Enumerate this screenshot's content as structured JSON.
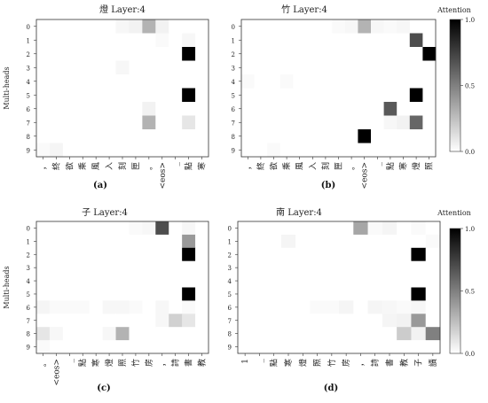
{
  "chart_data": [
    {
      "type": "heatmap",
      "title": "燈 Layer:4",
      "panel_label": "(a)",
      "ylabel": "Multi-heads",
      "y_ticks": [
        "0",
        "1",
        "2",
        "3",
        "4",
        "5",
        "6",
        "7",
        "8",
        "9"
      ],
      "x_ticks": [
        "，",
        "終",
        "欲",
        "乘",
        "風",
        "入",
        "刻",
        "匣",
        "。",
        "<eos>",
        "_",
        "點",
        "寒"
      ],
      "values": [
        [
          0,
          0,
          0,
          0,
          0,
          0,
          0.03,
          0.05,
          0.3,
          0.05,
          0,
          0,
          0
        ],
        [
          0,
          0,
          0,
          0,
          0,
          0,
          0,
          0,
          0,
          0.02,
          0,
          0.03,
          0
        ],
        [
          0,
          0,
          0,
          0,
          0,
          0,
          0,
          0,
          0,
          0,
          0,
          1.0,
          0
        ],
        [
          0,
          0,
          0,
          0,
          0,
          0,
          0.03,
          0,
          0,
          0,
          0,
          0,
          0
        ],
        [
          0,
          0,
          0,
          0,
          0,
          0,
          0,
          0,
          0,
          0,
          0,
          0,
          0
        ],
        [
          0,
          0,
          0,
          0,
          0,
          0,
          0,
          0,
          0,
          0,
          0,
          1.0,
          0
        ],
        [
          0,
          0,
          0,
          0,
          0,
          0,
          0,
          0,
          0.05,
          0,
          0,
          0,
          0
        ],
        [
          0,
          0,
          0,
          0,
          0,
          0,
          0,
          0,
          0.3,
          0,
          0,
          0.1,
          0
        ],
        [
          0,
          0,
          0,
          0,
          0,
          0,
          0,
          0,
          0,
          0,
          0,
          0,
          0
        ],
        [
          0.02,
          0.04,
          0,
          0,
          0,
          0,
          0,
          0,
          0,
          0,
          0,
          0,
          0
        ]
      ]
    },
    {
      "type": "heatmap",
      "title": "竹 Layer:4",
      "panel_label": "(b)",
      "ylabel": "",
      "y_ticks": [
        "0",
        "1",
        "2",
        "3",
        "4",
        "5",
        "6",
        "7",
        "8",
        "9"
      ],
      "x_ticks": [
        "，",
        "終",
        "欲",
        "乘",
        "風",
        "入",
        "刻",
        "匣",
        "。",
        "<eos>",
        "_",
        "點",
        "寒",
        "燈",
        "照"
      ],
      "values": [
        [
          0,
          0,
          0,
          0,
          0,
          0,
          0,
          0.02,
          0.03,
          0.3,
          0.03,
          0.02,
          0.03,
          0,
          0
        ],
        [
          0,
          0,
          0,
          0,
          0,
          0,
          0,
          0,
          0,
          0,
          0,
          0,
          0,
          0.7,
          0
        ],
        [
          0,
          0,
          0,
          0,
          0,
          0,
          0,
          0,
          0,
          0,
          0,
          0,
          0,
          0,
          1.0
        ],
        [
          0,
          0,
          0,
          0,
          0,
          0,
          0,
          0,
          0,
          0,
          0,
          0,
          0,
          0,
          0
        ],
        [
          0.02,
          0,
          0,
          0.02,
          0,
          0,
          0,
          0,
          0,
          0,
          0,
          0,
          0,
          0,
          0
        ],
        [
          0,
          0,
          0,
          0,
          0,
          0,
          0,
          0,
          0,
          0,
          0,
          0,
          0,
          1.0,
          0
        ],
        [
          0,
          0,
          0,
          0,
          0,
          0,
          0,
          0,
          0,
          0,
          0,
          0.65,
          0,
          0,
          0
        ],
        [
          0,
          0,
          0,
          0,
          0,
          0,
          0,
          0,
          0,
          0,
          0,
          0.03,
          0.05,
          0.6,
          0
        ],
        [
          0,
          0,
          0,
          0,
          0,
          0,
          0,
          0,
          0,
          1.0,
          0,
          0,
          0,
          0,
          0
        ],
        [
          0,
          0,
          0.02,
          0,
          0,
          0,
          0,
          0,
          0,
          0,
          0,
          0,
          0,
          0,
          0
        ]
      ]
    },
    {
      "type": "heatmap",
      "title": "子 Layer:4",
      "panel_label": "(c)",
      "ylabel": "Multi-heads",
      "y_ticks": [
        "0",
        "1",
        "2",
        "3",
        "4",
        "5",
        "6",
        "7",
        "8",
        "9"
      ],
      "x_ticks": [
        "。",
        "<eos>",
        "_",
        "點",
        "寒",
        "燈",
        "照",
        "竹",
        "房",
        "，",
        "詩",
        "書",
        "教"
      ],
      "values": [
        [
          0,
          0,
          0,
          0,
          0,
          0,
          0,
          0.02,
          0.03,
          0.7,
          0,
          0.03,
          0
        ],
        [
          0,
          0,
          0,
          0,
          0,
          0,
          0,
          0,
          0,
          0,
          0,
          0.4,
          0
        ],
        [
          0,
          0,
          0,
          0,
          0,
          0,
          0,
          0,
          0,
          0,
          0,
          1.0,
          0
        ],
        [
          0,
          0,
          0,
          0,
          0,
          0,
          0,
          0,
          0,
          0,
          0,
          0,
          0
        ],
        [
          0,
          0,
          0,
          0,
          0,
          0,
          0,
          0,
          0,
          0,
          0,
          0,
          0
        ],
        [
          0,
          0,
          0,
          0,
          0,
          0,
          0,
          0,
          0,
          0,
          0,
          1.0,
          0
        ],
        [
          0.04,
          0.02,
          0.02,
          0.02,
          0,
          0.03,
          0.03,
          0.02,
          0,
          0.03,
          0,
          0.02,
          0
        ],
        [
          0,
          0,
          0,
          0,
          0,
          0,
          0,
          0,
          0,
          0.03,
          0.18,
          0.1,
          0
        ],
        [
          0.1,
          0.03,
          0,
          0,
          0,
          0.03,
          0.3,
          0,
          0,
          0,
          0,
          0,
          0
        ],
        [
          0.02,
          0,
          0,
          0,
          0,
          0,
          0,
          0,
          0,
          0,
          0,
          0,
          0
        ]
      ]
    },
    {
      "type": "heatmap",
      "title": "南 Layer:4",
      "panel_label": "(d)",
      "ylabel": "",
      "y_ticks": [
        "0",
        "1",
        "2",
        "3",
        "4",
        "5",
        "6",
        "7",
        "8",
        "9"
      ],
      "x_ticks": [
        "1",
        "_",
        "點",
        "寒",
        "燈",
        "照",
        "竹",
        "房",
        "，",
        "詩",
        "書",
        "教",
        "子",
        "讀"
      ],
      "values": [
        [
          0,
          0,
          0,
          0,
          0,
          0,
          0,
          0,
          0.35,
          0.02,
          0.04,
          0,
          0.02,
          0
        ],
        [
          0,
          0,
          0,
          0.04,
          0,
          0,
          0,
          0,
          0,
          0,
          0,
          0,
          0,
          0.02
        ],
        [
          0,
          0,
          0,
          0,
          0,
          0,
          0,
          0,
          0,
          0,
          0,
          0,
          1.0,
          0
        ],
        [
          0,
          0,
          0,
          0,
          0,
          0,
          0,
          0,
          0,
          0,
          0,
          0,
          0,
          0
        ],
        [
          0,
          0,
          0,
          0,
          0,
          0,
          0,
          0,
          0,
          0,
          0,
          0,
          0,
          0
        ],
        [
          0,
          0,
          0,
          0,
          0,
          0,
          0,
          0,
          0,
          0,
          0,
          0,
          1.0,
          0
        ],
        [
          0,
          0,
          0,
          0,
          0,
          0.02,
          0.02,
          0.04,
          0,
          0.04,
          0.03,
          0.02,
          0.03,
          0
        ],
        [
          0,
          0,
          0,
          0,
          0,
          0,
          0,
          0,
          0,
          0,
          0.04,
          0.05,
          0.4,
          0
        ],
        [
          0,
          0,
          0,
          0,
          0,
          0,
          0,
          0,
          0,
          0,
          0,
          0.2,
          0.05,
          0.5
        ],
        [
          0,
          0,
          0,
          0,
          0,
          0,
          0,
          0,
          0,
          0,
          0,
          0,
          0,
          0
        ]
      ]
    }
  ],
  "colorbars": [
    {
      "title": "Attention",
      "ticks": [
        "1.0",
        "0.5",
        "0.0"
      ],
      "range": [
        0,
        1
      ]
    },
    {
      "title": "Attention",
      "ticks": [
        "1.0",
        "0.5",
        "0.0"
      ],
      "range": [
        0,
        1
      ]
    }
  ]
}
